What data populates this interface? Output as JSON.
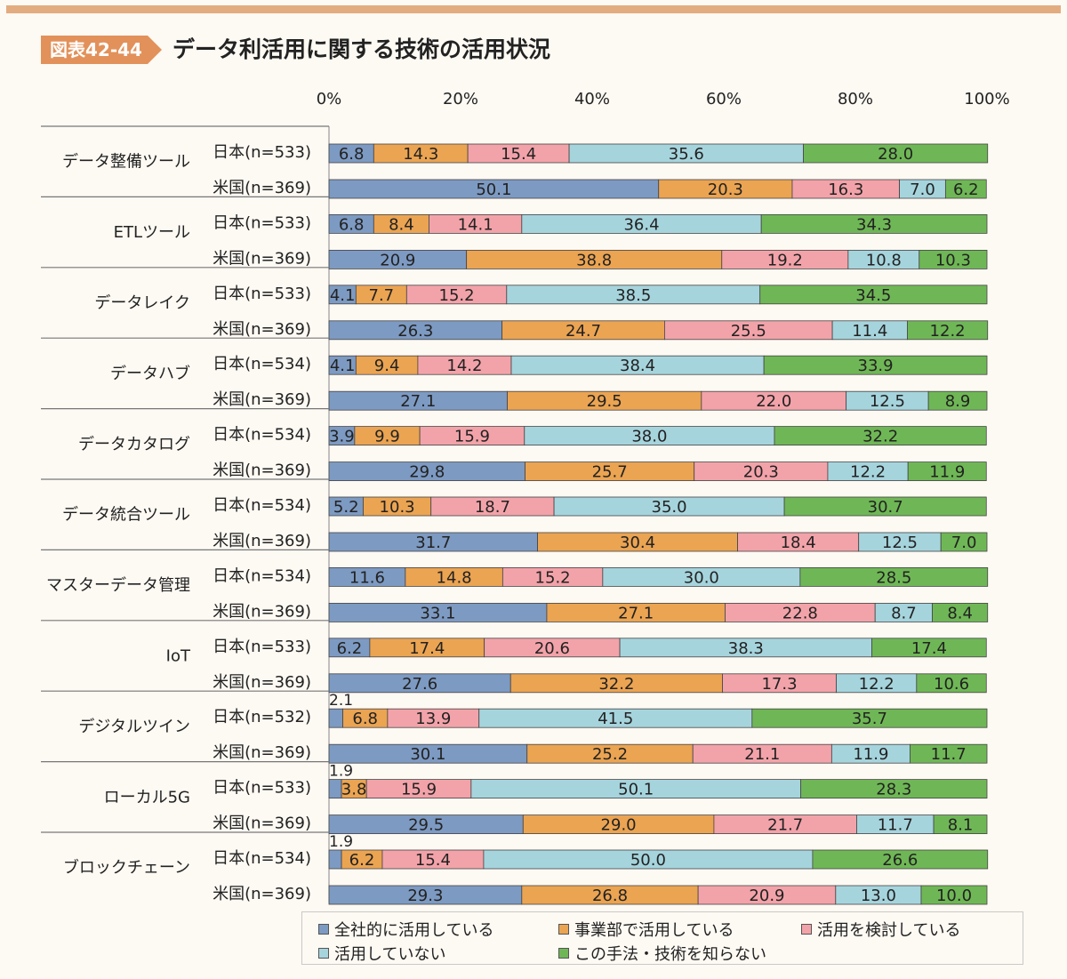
{
  "header": {
    "figure_tag": "図表42-44",
    "title": "データ利活用に関する技術の活用状況"
  },
  "chart_data": {
    "type": "bar",
    "orientation": "horizontal",
    "stacked": true,
    "title": "データ利活用に関する技術の活用状況",
    "x_ticks": [
      "0%",
      "20%",
      "40%",
      "60%",
      "80%",
      "100%"
    ],
    "xlim": [
      0,
      100
    ],
    "legend_position": "bottom",
    "series": [
      {
        "name": "全社的に活用している",
        "color": "#7d9ac2"
      },
      {
        "name": "事業部で活用している",
        "color": "#eba452"
      },
      {
        "name": "活用を検討している",
        "color": "#f2a3a9"
      },
      {
        "name": "活用していない",
        "color": "#a6d4dd"
      },
      {
        "name": "この手法・技術を知らない",
        "color": "#6fb756"
      }
    ],
    "groups": [
      {
        "name": "データ整備ツール",
        "rows": [
          {
            "label": "日本(n=533)",
            "values": [
              6.8,
              14.3,
              15.4,
              35.6,
              28.0
            ]
          },
          {
            "label": "米国(n=369)",
            "values": [
              50.1,
              20.3,
              16.3,
              7.0,
              6.2
            ]
          }
        ]
      },
      {
        "name": "ETLツール",
        "rows": [
          {
            "label": "日本(n=533)",
            "values": [
              6.8,
              8.4,
              14.1,
              36.4,
              34.3
            ]
          },
          {
            "label": "米国(n=369)",
            "values": [
              20.9,
              38.8,
              19.2,
              10.8,
              10.3
            ]
          }
        ]
      },
      {
        "name": "データレイク",
        "rows": [
          {
            "label": "日本(n=533)",
            "values": [
              4.1,
              7.7,
              15.2,
              38.5,
              34.5
            ]
          },
          {
            "label": "米国(n=369)",
            "values": [
              26.3,
              24.7,
              25.5,
              11.4,
              12.2
            ]
          }
        ]
      },
      {
        "name": "データハブ",
        "rows": [
          {
            "label": "日本(n=534)",
            "values": [
              4.1,
              9.4,
              14.2,
              38.4,
              33.9
            ]
          },
          {
            "label": "米国(n=369)",
            "values": [
              27.1,
              29.5,
              22.0,
              12.5,
              8.9
            ]
          }
        ]
      },
      {
        "name": "データカタログ",
        "rows": [
          {
            "label": "日本(n=534)",
            "values": [
              3.9,
              9.9,
              15.9,
              38.0,
              32.2
            ]
          },
          {
            "label": "米国(n=369)",
            "values": [
              29.8,
              25.7,
              20.3,
              12.2,
              11.9
            ]
          }
        ]
      },
      {
        "name": "データ統合ツール",
        "rows": [
          {
            "label": "日本(n=534)",
            "values": [
              5.2,
              10.3,
              18.7,
              35.0,
              30.7
            ]
          },
          {
            "label": "米国(n=369)",
            "values": [
              31.7,
              30.4,
              18.4,
              12.5,
              7.0
            ]
          }
        ]
      },
      {
        "name": "マスターデータ管理",
        "rows": [
          {
            "label": "日本(n=534)",
            "values": [
              11.6,
              14.8,
              15.2,
              30.0,
              28.5
            ]
          },
          {
            "label": "米国(n=369)",
            "values": [
              33.1,
              27.1,
              22.8,
              8.7,
              8.4
            ]
          }
        ]
      },
      {
        "name": "IoT",
        "rows": [
          {
            "label": "日本(n=533)",
            "values": [
              6.2,
              17.4,
              20.6,
              38.3,
              17.4
            ]
          },
          {
            "label": "米国(n=369)",
            "values": [
              27.6,
              32.2,
              17.3,
              12.2,
              10.6
            ]
          }
        ]
      },
      {
        "name": "デジタルツイン",
        "rows": [
          {
            "label": "日本(n=532)",
            "values": [
              2.1,
              6.8,
              13.9,
              41.5,
              35.7
            ]
          },
          {
            "label": "米国(n=369)",
            "values": [
              30.1,
              25.2,
              21.1,
              11.9,
              11.7
            ]
          }
        ]
      },
      {
        "name": "ローカル5G",
        "rows": [
          {
            "label": "日本(n=533)",
            "values": [
              1.9,
              3.8,
              15.9,
              50.1,
              28.3
            ]
          },
          {
            "label": "米国(n=369)",
            "values": [
              29.5,
              29.0,
              21.7,
              11.7,
              8.1
            ]
          }
        ]
      },
      {
        "name": "ブロックチェーン",
        "rows": [
          {
            "label": "日本(n=534)",
            "values": [
              1.9,
              6.2,
              15.4,
              50.0,
              26.6
            ]
          },
          {
            "label": "米国(n=369)",
            "values": [
              29.3,
              26.8,
              20.9,
              13.0,
              10.0
            ]
          }
        ]
      }
    ]
  }
}
